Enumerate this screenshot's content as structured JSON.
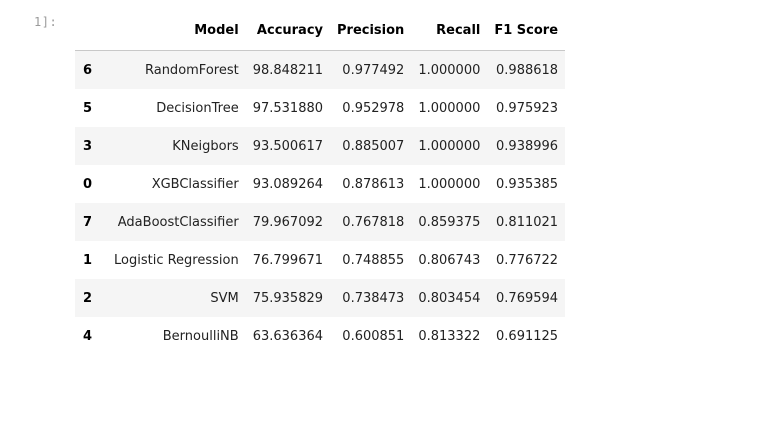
{
  "cell": {
    "prompt": "1]:"
  },
  "table": {
    "columns": [
      "",
      "Model",
      "Accuracy",
      "Precision",
      "Recall",
      "F1 Score"
    ],
    "rows": [
      {
        "index": "6",
        "model": "RandomForest",
        "accuracy": "98.848211",
        "precision": "0.977492",
        "recall": "1.000000",
        "f1": "0.988618"
      },
      {
        "index": "5",
        "model": "DecisionTree",
        "accuracy": "97.531880",
        "precision": "0.952978",
        "recall": "1.000000",
        "f1": "0.975923"
      },
      {
        "index": "3",
        "model": "KNeigbors",
        "accuracy": "93.500617",
        "precision": "0.885007",
        "recall": "1.000000",
        "f1": "0.938996"
      },
      {
        "index": "0",
        "model": "XGBClassifier",
        "accuracy": "93.089264",
        "precision": "0.878613",
        "recall": "1.000000",
        "f1": "0.935385"
      },
      {
        "index": "7",
        "model": "AdaBoostClassifier",
        "accuracy": "79.967092",
        "precision": "0.767818",
        "recall": "0.859375",
        "f1": "0.811021"
      },
      {
        "index": "1",
        "model": "Logistic Regression",
        "accuracy": "76.799671",
        "precision": "0.748855",
        "recall": "0.806743",
        "f1": "0.776722"
      },
      {
        "index": "2",
        "model": "SVM",
        "accuracy": "75.935829",
        "precision": "0.738473",
        "recall": "0.803454",
        "f1": "0.769594"
      },
      {
        "index": "4",
        "model": "BernoulliNB",
        "accuracy": "63.636364",
        "precision": "0.600851",
        "recall": "0.813322",
        "f1": "0.691125"
      }
    ]
  },
  "colors": {
    "stripe": "#f5f5f5",
    "header_border": "#c8c8c8",
    "prompt": "#9a9a9a"
  }
}
